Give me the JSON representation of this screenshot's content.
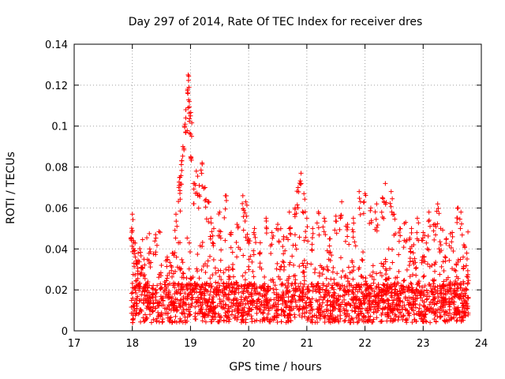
{
  "chart_data": {
    "type": "scatter",
    "title": "Day 297 of 2014, Rate Of TEC Index for receiver dres",
    "xlabel": "GPS time / hours",
    "ylabel": "ROTI / TECUs",
    "xlim": [
      17,
      24
    ],
    "ylim": [
      0,
      0.14
    ],
    "grid": true,
    "marker": "+",
    "color": "#ff0000",
    "xticks": [
      17,
      18,
      19,
      20,
      21,
      22,
      23,
      24
    ],
    "xtick_labels": [
      "17",
      "18",
      "19",
      "20",
      "21",
      "22",
      "23",
      "24"
    ],
    "yticks": [
      0,
      0.02,
      0.04,
      0.06,
      0.08,
      0.1,
      0.12,
      0.14
    ],
    "ytick_labels": [
      "0",
      "0.02",
      "0.04",
      "0.06",
      "0.08",
      "0.1",
      "0.12",
      "0.14"
    ],
    "series": [
      {
        "name": "ROTI",
        "points": [
          [
            18.0,
            0.057
          ],
          [
            18.0,
            0.049
          ],
          [
            18.02,
            0.044
          ],
          [
            18.05,
            0.036
          ],
          [
            18.1,
            0.038
          ],
          [
            18.15,
            0.031
          ],
          [
            18.2,
            0.035
          ],
          [
            18.3,
            0.04
          ],
          [
            18.4,
            0.047
          ],
          [
            18.5,
            0.032
          ],
          [
            18.6,
            0.036
          ],
          [
            18.7,
            0.038
          ],
          [
            18.75,
            0.057
          ],
          [
            18.8,
            0.07
          ],
          [
            18.82,
            0.075
          ],
          [
            18.85,
            0.083
          ],
          [
            18.87,
            0.09
          ],
          [
            18.9,
            0.1
          ],
          [
            18.92,
            0.108
          ],
          [
            18.95,
            0.118
          ],
          [
            18.96,
            0.125
          ],
          [
            18.98,
            0.112
          ],
          [
            19.0,
            0.105
          ],
          [
            19.02,
            0.095
          ],
          [
            19.05,
            0.072
          ],
          [
            19.1,
            0.078
          ],
          [
            19.15,
            0.071
          ],
          [
            19.2,
            0.082
          ],
          [
            19.25,
            0.07
          ],
          [
            19.3,
            0.063
          ],
          [
            19.35,
            0.055
          ],
          [
            19.4,
            0.05
          ],
          [
            19.5,
            0.058
          ],
          [
            19.6,
            0.066
          ],
          [
            19.7,
            0.048
          ],
          [
            19.8,
            0.052
          ],
          [
            19.9,
            0.066
          ],
          [
            19.95,
            0.063
          ],
          [
            20.0,
            0.045
          ],
          [
            20.1,
            0.05
          ],
          [
            20.2,
            0.043
          ],
          [
            20.3,
            0.055
          ],
          [
            20.4,
            0.048
          ],
          [
            20.5,
            0.052
          ],
          [
            20.6,
            0.046
          ],
          [
            20.7,
            0.058
          ],
          [
            20.8,
            0.06
          ],
          [
            20.85,
            0.07
          ],
          [
            20.9,
            0.077
          ],
          [
            20.95,
            0.067
          ],
          [
            21.0,
            0.055
          ],
          [
            21.1,
            0.05
          ],
          [
            21.2,
            0.058
          ],
          [
            21.3,
            0.055
          ],
          [
            21.4,
            0.045
          ],
          [
            21.5,
            0.056
          ],
          [
            21.6,
            0.063
          ],
          [
            21.7,
            0.052
          ],
          [
            21.8,
            0.055
          ],
          [
            21.9,
            0.068
          ],
          [
            22.0,
            0.067
          ],
          [
            22.1,
            0.06
          ],
          [
            22.2,
            0.062
          ],
          [
            22.3,
            0.065
          ],
          [
            22.35,
            0.072
          ],
          [
            22.45,
            0.068
          ],
          [
            22.5,
            0.057
          ],
          [
            22.6,
            0.05
          ],
          [
            22.7,
            0.053
          ],
          [
            22.8,
            0.05
          ],
          [
            22.9,
            0.055
          ],
          [
            23.0,
            0.048
          ],
          [
            23.1,
            0.058
          ],
          [
            23.2,
            0.052
          ],
          [
            23.25,
            0.062
          ],
          [
            23.3,
            0.05
          ],
          [
            23.4,
            0.045
          ],
          [
            23.5,
            0.048
          ],
          [
            23.6,
            0.06
          ],
          [
            23.65,
            0.058
          ],
          [
            23.7,
            0.042
          ],
          [
            23.75,
            0.038
          ]
        ],
        "dense_band": {
          "x_range": [
            17.98,
            23.78
          ],
          "baseline_y": [
            0.004,
            0.03
          ],
          "typical_y": 0.015,
          "approx_count": 2200
        }
      }
    ]
  }
}
